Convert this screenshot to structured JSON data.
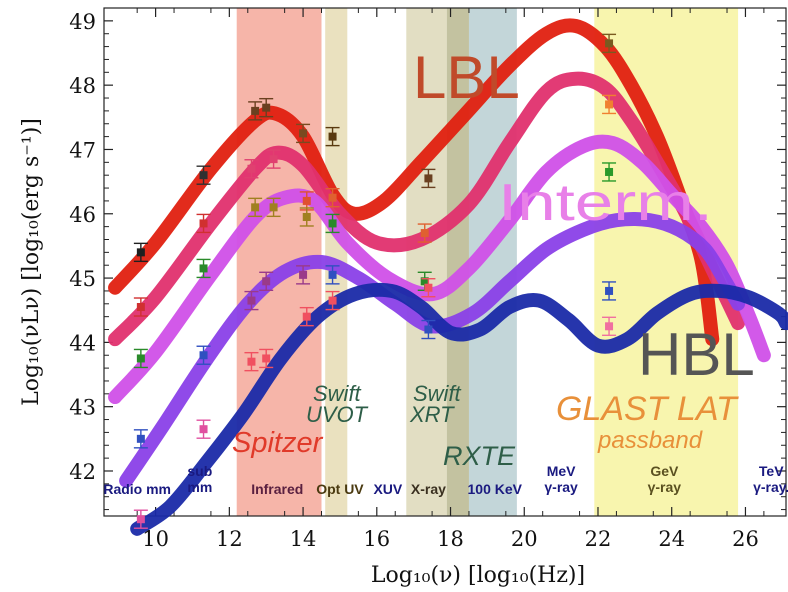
{
  "chart_data": {
    "type": "line",
    "xlabel": "Log₁₀(ν) [log₁₀(Hz)]",
    "ylabel": "Log₁₀(νLν) [log₁₀(erg s⁻¹)]",
    "xlim": [
      8.6,
      27.1
    ],
    "ylim": [
      41.3,
      49.2
    ],
    "x_ticks": [
      10,
      12,
      14,
      16,
      18,
      20,
      22,
      24,
      26
    ],
    "y_ticks": [
      42,
      43,
      44,
      45,
      46,
      47,
      48,
      49
    ],
    "bands": [
      {
        "name": "Spitzer",
        "x": [
          12.2,
          14.5
        ],
        "color": "#f4a89a"
      },
      {
        "name": "Swift UVOT",
        "x": [
          14.6,
          15.2
        ],
        "color": "#e6dcb4"
      },
      {
        "name": "Swift XRT",
        "x": [
          16.8,
          17.9
        ],
        "color": "#ddd8b8"
      },
      {
        "name": "Swift XRT / RXTE overlap",
        "x": [
          17.9,
          18.5
        ],
        "color": "#b9b78f"
      },
      {
        "name": "RXTE",
        "x": [
          18.5,
          19.8
        ],
        "color": "#b9cfd2"
      },
      {
        "name": "GLAST LAT",
        "x": [
          21.9,
          25.8
        ],
        "color": "#f7f3a0"
      }
    ],
    "band_labels": {
      "spitzer": "Spitzer",
      "swift_uvot_1": "Swift",
      "swift_uvot_2": "UVOT",
      "swift_xrt_1": "Swift",
      "swift_xrt_2": "XRT",
      "rxte": "RXTE",
      "glast_1": "GLAST LAT",
      "glast_2": "passband"
    },
    "curve_labels": {
      "lbl": "LBL",
      "interm": "Interm.",
      "hbl": "HBL"
    },
    "bottom_labels": [
      {
        "lines": [
          "Radio mm"
        ],
        "x": 9.5,
        "color": "#1a1a80"
      },
      {
        "lines": [
          "sub",
          "mm"
        ],
        "x": 11.2,
        "color": "#1a1a80"
      },
      {
        "lines": [
          "Infrared"
        ],
        "x": 13.3,
        "color": "#5a2040"
      },
      {
        "lines": [
          "Opt UV"
        ],
        "x": 15.0,
        "color": "#4a3a10"
      },
      {
        "lines": [
          "XUV"
        ],
        "x": 16.3,
        "color": "#1a1a80"
      },
      {
        "lines": [
          "X-ray"
        ],
        "x": 17.4,
        "color": "#3a3020"
      },
      {
        "lines": [
          "100 KeV"
        ],
        "x": 19.2,
        "color": "#1a1a80"
      },
      {
        "lines": [
          "MeV",
          "γ-ray"
        ],
        "x": 21.0,
        "color": "#1a1a80"
      },
      {
        "lines": [
          "GeV",
          "γ-ray"
        ],
        "x": 23.8,
        "color": "#5a5020"
      },
      {
        "lines": [
          "TeV",
          "γ-ray."
        ],
        "x": 26.7,
        "color": "#1a1a80"
      }
    ],
    "series": [
      {
        "color": "#e02010",
        "x": [
          8.9,
          10.0,
          11.5,
          12.7,
          13.3,
          14.0,
          14.8,
          15.4,
          16.2,
          17.2,
          18.4,
          19.6,
          20.6,
          21.4,
          22.2,
          22.9,
          23.6,
          24.2,
          24.8,
          25.1
        ],
        "y": [
          44.85,
          45.55,
          46.7,
          47.45,
          47.55,
          47.2,
          46.3,
          46.0,
          46.2,
          46.8,
          47.55,
          48.3,
          48.8,
          48.92,
          48.6,
          48.0,
          47.2,
          46.3,
          45.3,
          44.05
        ]
      },
      {
        "color": "#e0306e",
        "x": [
          8.9,
          10.0,
          11.5,
          12.7,
          13.3,
          14.0,
          15.0,
          16.0,
          17.2,
          18.5,
          19.6,
          20.6,
          21.4,
          22.2,
          22.9,
          23.6,
          24.3,
          24.8,
          25.3,
          25.8
        ],
        "y": [
          44.05,
          44.7,
          45.85,
          46.7,
          46.95,
          46.75,
          46.0,
          45.55,
          45.6,
          46.15,
          47.1,
          47.9,
          48.1,
          47.95,
          47.45,
          46.8,
          46.1,
          45.5,
          44.9,
          44.3
        ]
      },
      {
        "color": "#d050e8",
        "x": [
          8.9,
          10.0,
          11.5,
          12.7,
          13.5,
          14.3,
          15.2,
          16.3,
          17.5,
          18.5,
          19.6,
          20.6,
          21.6,
          22.4,
          23.2,
          24.0,
          24.8,
          25.5,
          26.1,
          26.5
        ],
        "y": [
          43.15,
          43.85,
          45.05,
          45.95,
          46.25,
          46.2,
          45.55,
          45.0,
          44.75,
          45.15,
          45.9,
          46.65,
          47.05,
          47.1,
          46.8,
          46.3,
          45.8,
          45.2,
          44.4,
          43.8
        ]
      },
      {
        "color": "#8a40e8",
        "x": [
          9.2,
          10.2,
          11.4,
          12.5,
          13.5,
          14.5,
          15.5,
          16.5,
          17.5,
          18.6,
          19.6,
          20.6,
          21.6,
          22.5,
          23.4,
          24.2,
          24.9,
          25.4,
          25.8
        ],
        "y": [
          41.85,
          42.7,
          43.75,
          44.6,
          45.1,
          45.25,
          45.0,
          44.6,
          44.25,
          44.45,
          44.95,
          45.45,
          45.75,
          45.9,
          45.9,
          45.75,
          45.45,
          45.0,
          44.6
        ]
      },
      {
        "color": "#1a2aa8",
        "x": [
          9.5,
          10.4,
          11.4,
          12.4,
          13.4,
          14.4,
          15.4,
          16.4,
          17.2,
          18.0,
          18.8,
          19.6,
          20.4,
          21.2,
          22.0,
          22.8,
          23.6,
          24.5,
          25.3,
          26.1,
          26.9,
          27.1
        ],
        "y": [
          41.1,
          41.45,
          42.15,
          42.9,
          43.75,
          44.4,
          44.75,
          44.8,
          44.55,
          44.15,
          44.2,
          44.55,
          44.65,
          44.35,
          43.95,
          44.05,
          44.45,
          44.75,
          44.8,
          44.7,
          44.45,
          44.3
        ]
      }
    ],
    "data_points": [
      {
        "x": 9.6,
        "y": 45.4,
        "color": "#202020"
      },
      {
        "x": 11.3,
        "y": 46.6,
        "color": "#303030"
      },
      {
        "x": 12.7,
        "y": 47.6,
        "color": "#6a4020"
      },
      {
        "x": 13.0,
        "y": 47.65,
        "color": "#6a4020"
      },
      {
        "x": 14.0,
        "y": 47.25,
        "color": "#7a4a20"
      },
      {
        "x": 14.8,
        "y": 47.2,
        "color": "#5a3a10"
      },
      {
        "x": 17.4,
        "y": 46.55,
        "color": "#6a4020"
      },
      {
        "x": 22.3,
        "y": 48.65,
        "color": "#7a5a20"
      },
      {
        "x": 9.6,
        "y": 44.55,
        "color": "#d03030"
      },
      {
        "x": 11.3,
        "y": 45.85,
        "color": "#d03030"
      },
      {
        "x": 12.6,
        "y": 46.7,
        "color": "#e04070"
      },
      {
        "x": 13.2,
        "y": 46.85,
        "color": "#e04070"
      },
      {
        "x": 14.1,
        "y": 46.2,
        "color": "#e05030"
      },
      {
        "x": 14.8,
        "y": 46.25,
        "color": "#e06030"
      },
      {
        "x": 17.3,
        "y": 45.7,
        "color": "#e06030"
      },
      {
        "x": 22.3,
        "y": 47.7,
        "color": "#f08030"
      },
      {
        "x": 9.6,
        "y": 43.75,
        "color": "#2a8a2a"
      },
      {
        "x": 11.3,
        "y": 45.15,
        "color": "#2a8a2a"
      },
      {
        "x": 12.7,
        "y": 46.1,
        "color": "#a08020"
      },
      {
        "x": 13.2,
        "y": 46.1,
        "color": "#a08020"
      },
      {
        "x": 14.1,
        "y": 45.95,
        "color": "#a08020"
      },
      {
        "x": 14.8,
        "y": 45.85,
        "color": "#2a8a2a"
      },
      {
        "x": 17.3,
        "y": 44.95,
        "color": "#2a8a2a"
      },
      {
        "x": 22.3,
        "y": 46.65,
        "color": "#2a9a2a"
      },
      {
        "x": 9.6,
        "y": 42.5,
        "color": "#3050c0"
      },
      {
        "x": 11.3,
        "y": 43.8,
        "color": "#3050c0"
      },
      {
        "x": 12.6,
        "y": 44.65,
        "color": "#9a3a8a"
      },
      {
        "x": 13.0,
        "y": 44.95,
        "color": "#9a3a8a"
      },
      {
        "x": 14.0,
        "y": 45.05,
        "color": "#9a3a8a"
      },
      {
        "x": 14.8,
        "y": 45.05,
        "color": "#3050c0"
      },
      {
        "x": 17.4,
        "y": 44.2,
        "color": "#3050c0"
      },
      {
        "x": 22.3,
        "y": 44.8,
        "color": "#3050c0"
      },
      {
        "x": 9.6,
        "y": 41.25,
        "color": "#e050a0"
      },
      {
        "x": 11.3,
        "y": 42.65,
        "color": "#e050a0"
      },
      {
        "x": 12.6,
        "y": 43.7,
        "color": "#f05060"
      },
      {
        "x": 13.0,
        "y": 43.75,
        "color": "#f05060"
      },
      {
        "x": 14.1,
        "y": 44.4,
        "color": "#f05060"
      },
      {
        "x": 14.8,
        "y": 44.65,
        "color": "#f05060"
      },
      {
        "x": 17.4,
        "y": 44.85,
        "color": "#f05060"
      },
      {
        "x": 22.3,
        "y": 44.25,
        "color": "#f070a0"
      }
    ]
  }
}
